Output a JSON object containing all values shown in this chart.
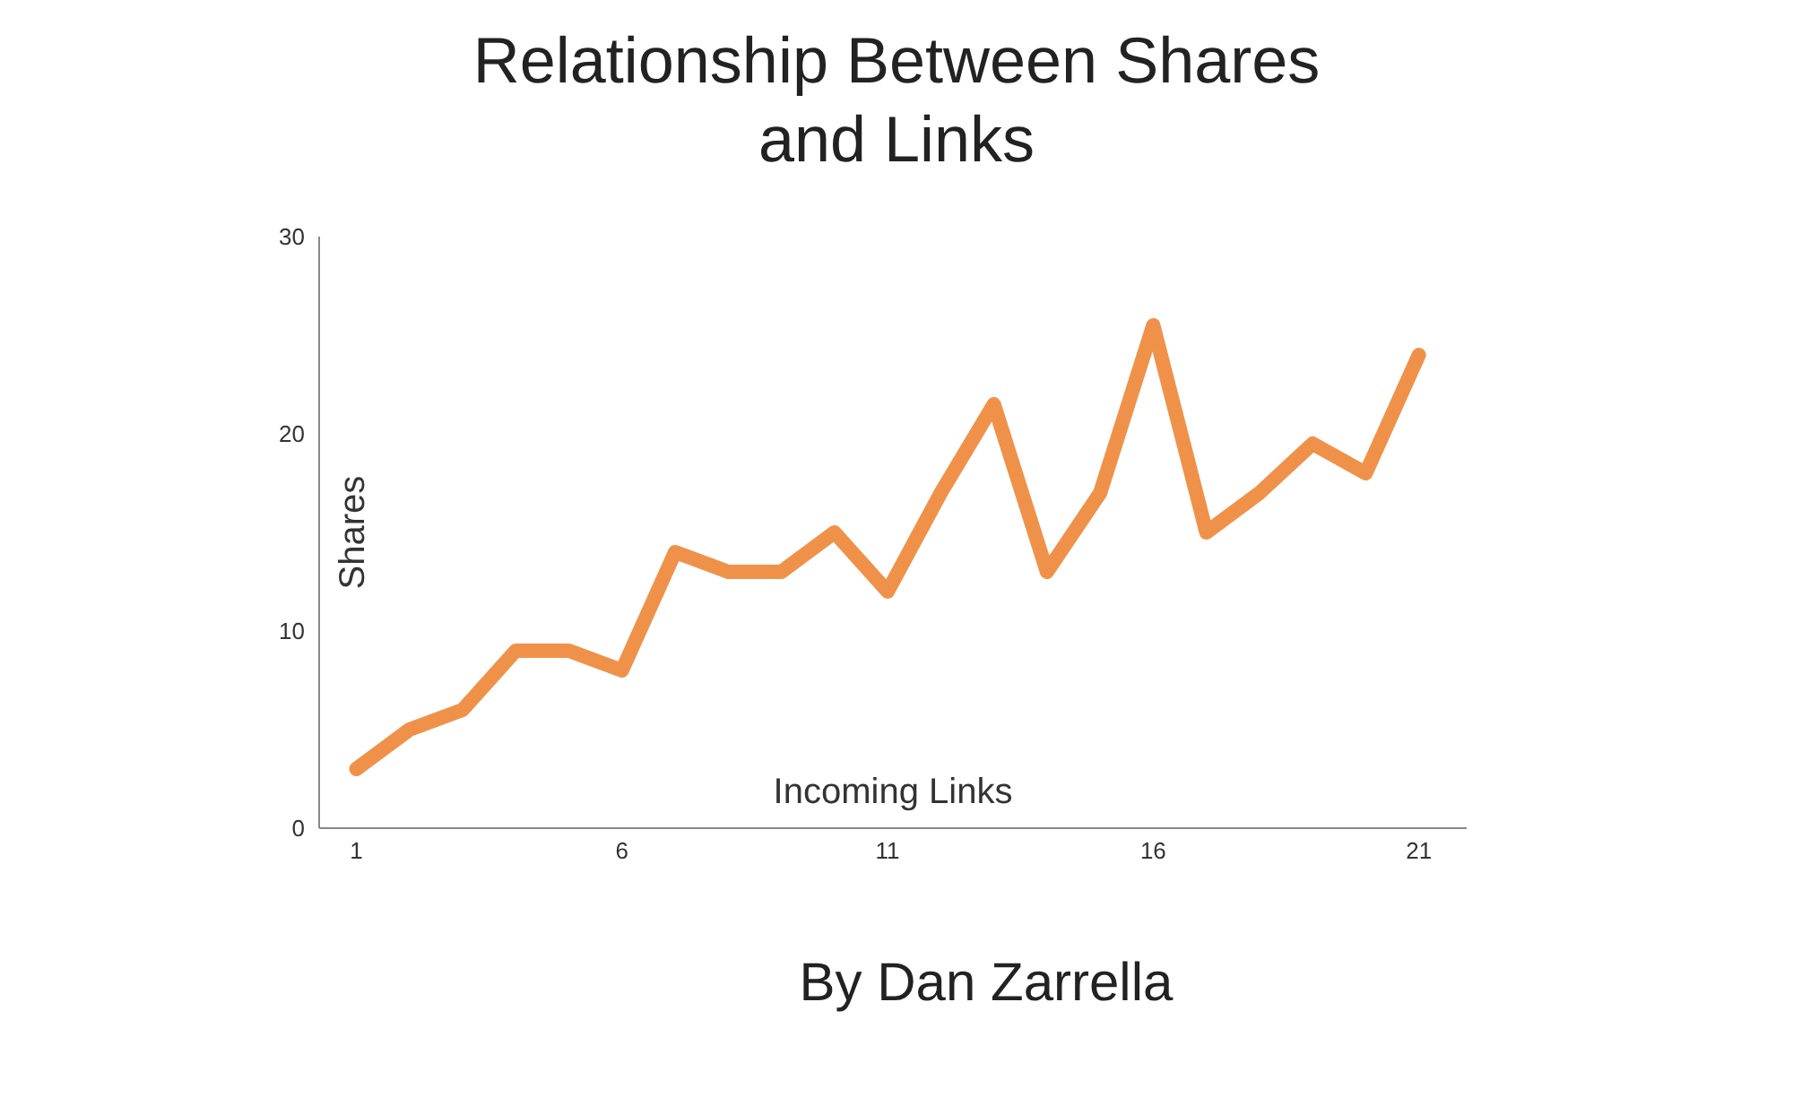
{
  "chart_data": {
    "type": "line",
    "title": "Relationship Between Shares and Links",
    "xlabel": "Incoming Links",
    "ylabel": "Shares",
    "annotations": [
      "By Dan Zarrella"
    ],
    "x": [
      1,
      2,
      3,
      4,
      5,
      6,
      7,
      8,
      9,
      10,
      11,
      12,
      13,
      14,
      15,
      16,
      17,
      18,
      19,
      20,
      21
    ],
    "series": [
      {
        "color": "#f0914a",
        "values": [
          3,
          5,
          6,
          9,
          9,
          8,
          14,
          13,
          13,
          15,
          12,
          17,
          21.5,
          13,
          17,
          25.5,
          15,
          17,
          19.5,
          18,
          24
        ]
      }
    ],
    "xlim": [
      0.3,
      21.9
    ],
    "xticks": [
      1,
      6,
      11,
      16,
      21
    ],
    "ylim": [
      0,
      30
    ],
    "yticks": [
      0,
      10,
      20,
      30
    ],
    "grid": false,
    "legend": false,
    "marker": "none",
    "line_style": "solid"
  }
}
